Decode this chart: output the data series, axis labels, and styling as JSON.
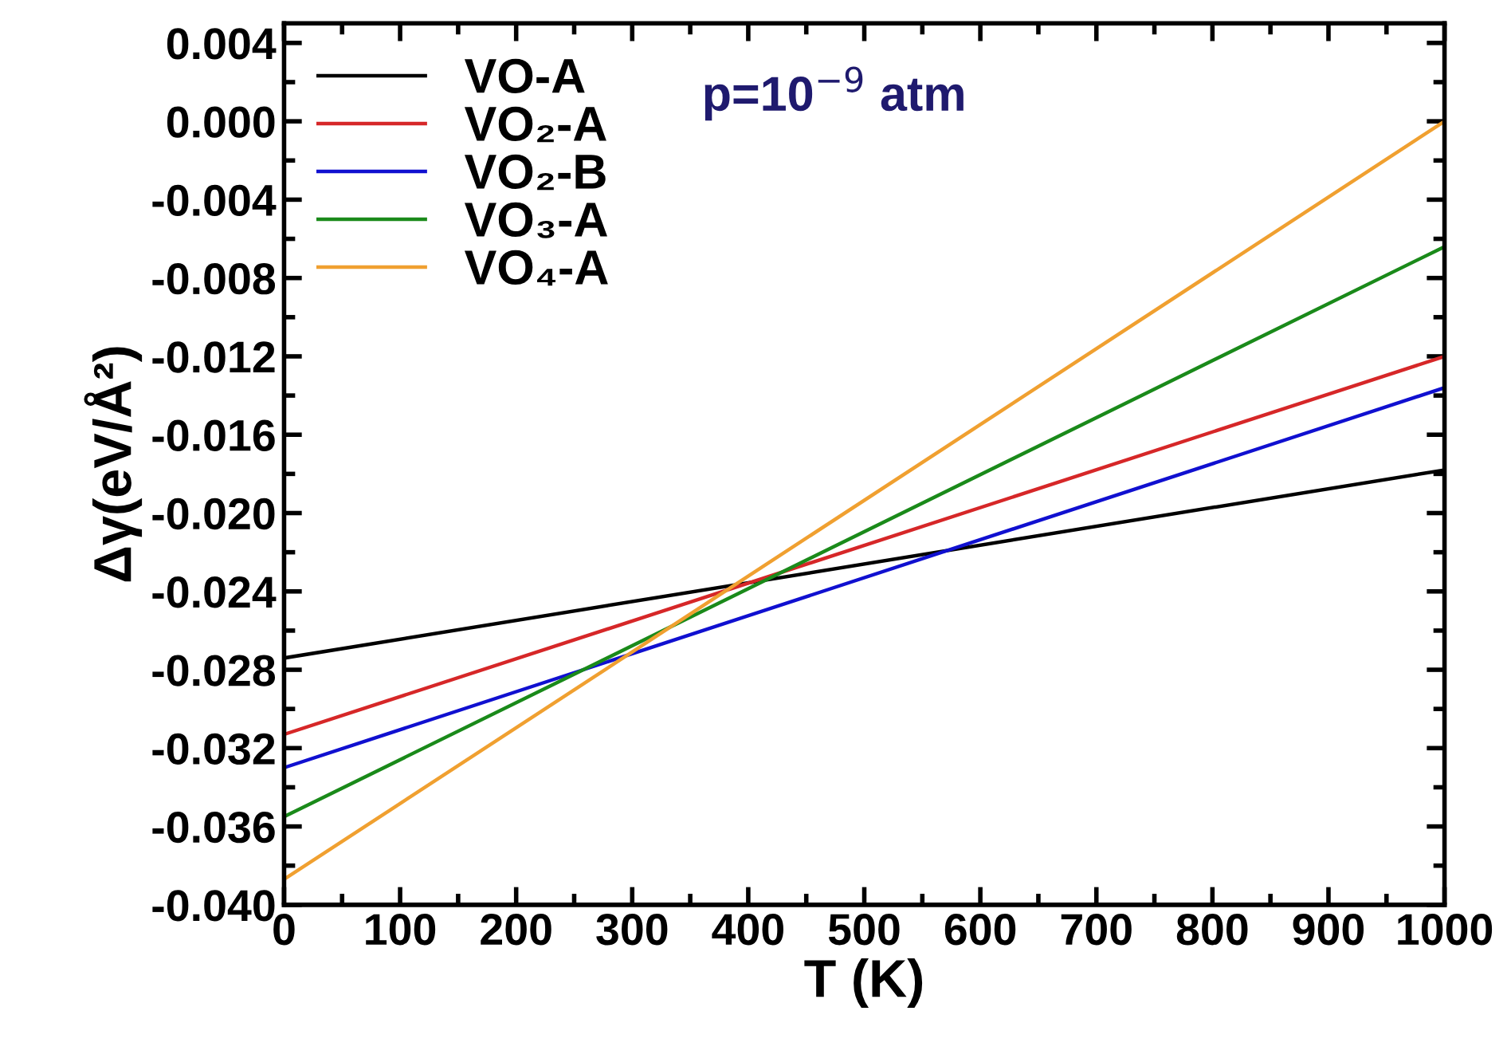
{
  "chart_data": {
    "type": "line",
    "xlabel": "T (K)",
    "ylabel": "Δγ(eV/Å²)",
    "annotations": [
      "p=10$^{−9}$ atm"
    ],
    "xlim": [
      0,
      1000
    ],
    "ylim": [
      -0.04,
      0.005
    ],
    "xticks": [
      0,
      100,
      200,
      300,
      400,
      500,
      600,
      700,
      800,
      900,
      1000
    ],
    "yticks": [
      {
        "value": 0.004,
        "label": "0.004"
      },
      {
        "value": 0.0,
        "label": "0.000"
      },
      {
        "value": -0.004,
        "label": "-0.004"
      },
      {
        "value": -0.008,
        "label": "-0.008"
      },
      {
        "value": -0.012,
        "label": "-0.012"
      },
      {
        "value": -0.016,
        "label": "-0.016"
      },
      {
        "value": -0.02,
        "label": "-0.020"
      },
      {
        "value": -0.024,
        "label": "-0.024"
      },
      {
        "value": -0.028,
        "label": "-0.028"
      },
      {
        "value": -0.032,
        "label": "-0.032"
      },
      {
        "value": -0.036,
        "label": "-0.036"
      },
      {
        "value": -0.04,
        "label": "-0.040"
      }
    ],
    "x": [
      0,
      1000
    ],
    "series": [
      {
        "name": "VO-A",
        "color": "#000000",
        "values": [
          -0.0274,
          -0.0178
        ]
      },
      {
        "name": "VO₂-A",
        "color": "#d62728",
        "values": [
          -0.0313,
          -0.012
        ]
      },
      {
        "name": "VO₂-B",
        "color": "#1010d0",
        "values": [
          -0.033,
          -0.0136
        ]
      },
      {
        "name": "VO₃-A",
        "color": "#1a8a1a",
        "values": [
          -0.0355,
          -0.0064
        ]
      },
      {
        "name": "VO₄-A",
        "color": "#f0a030",
        "values": [
          -0.0387,
          0.0
        ]
      }
    ],
    "legend": "top left",
    "grid": false,
    "marker": "none",
    "line_style": "solid"
  }
}
